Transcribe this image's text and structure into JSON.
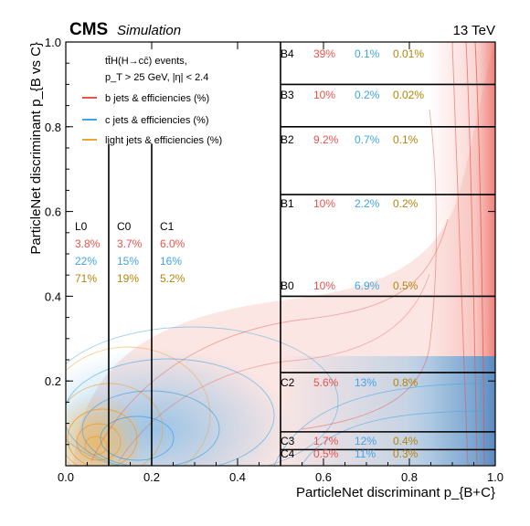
{
  "header": {
    "experiment": "CMS",
    "status": "Simulation",
    "energy": "13 TeV"
  },
  "legend": {
    "process": "tt̄H(H→cc̄) events,",
    "cuts": "p_T > 25 GeV, |η| < 2.4",
    "entries": [
      {
        "label": "b jets & efficiencies (%)",
        "color": "#e8534a"
      },
      {
        "label": "c jets & efficiencies (%)",
        "color": "#3fa5e6"
      },
      {
        "label": "light jets & efficiencies (%)",
        "color": "#f0a23a"
      }
    ]
  },
  "colors": {
    "b": "#e8534a",
    "c": "#3fa5e6",
    "light": "#b5850b"
  },
  "chart_data": {
    "type": "heatmap",
    "xlabel": "ParticleNet discriminant p_{B+C}",
    "ylabel": "ParticleNet discriminant p_{B vs C}",
    "xlim": [
      0.0,
      1.0
    ],
    "ylim": [
      0.0,
      1.0
    ],
    "xticks": [
      "0.0",
      "0.2",
      "0.4",
      "0.6",
      "0.8",
      "1.0"
    ],
    "yticks": [
      "0.2",
      "0.4",
      "0.6",
      "0.8",
      "1.0"
    ],
    "xtick_values": [
      0.0,
      0.2,
      0.4,
      0.6,
      0.8,
      1.0
    ],
    "ytick_values": [
      0.2,
      0.4,
      0.6,
      0.8,
      1.0
    ],
    "boundaries": {
      "vertical_low": [
        0.1,
        0.2
      ],
      "vertical_split": 0.5,
      "horizontal_right": [
        0.038,
        0.08,
        0.22,
        0.4,
        0.64,
        0.8,
        0.9
      ]
    },
    "categories": [
      {
        "name": "L0",
        "b": "3.8%",
        "c": "22%",
        "light": "71%"
      },
      {
        "name": "C0",
        "b": "3.7%",
        "c": "15%",
        "light": "19%"
      },
      {
        "name": "C1",
        "b": "6.0%",
        "c": "16%",
        "light": "5.2%"
      },
      {
        "name": "B4",
        "b": "39%",
        "c": "0.1%",
        "light": "0.01%"
      },
      {
        "name": "B3",
        "b": "10%",
        "c": "0.2%",
        "light": "0.02%"
      },
      {
        "name": "B2",
        "b": "9.2%",
        "c": "0.7%",
        "light": "0.1%"
      },
      {
        "name": "B1",
        "b": "10%",
        "c": "2.2%",
        "light": "0.2%"
      },
      {
        "name": "B0",
        "b": "10%",
        "c": "6.9%",
        "light": "0.5%"
      },
      {
        "name": "C2",
        "b": "5.6%",
        "c": "13%",
        "light": "0.8%"
      },
      {
        "name": "C3",
        "b": "1.7%",
        "c": "12%",
        "light": "0.4%"
      },
      {
        "name": "C4",
        "b": "0.5%",
        "c": "11%",
        "light": "0.3%"
      }
    ]
  }
}
